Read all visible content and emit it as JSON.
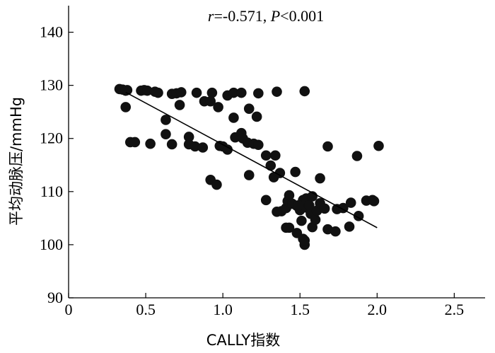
{
  "chart_data": {
    "type": "scatter",
    "title": "",
    "xlabel": "CALLY指数",
    "ylabel": "平均动脉压/mmHg",
    "xlim": [
      0,
      2.7
    ],
    "ylim": [
      90,
      145
    ],
    "xticks": [
      0,
      0.5,
      1.0,
      1.5,
      2.0,
      2.5
    ],
    "xtick_labels": [
      "0",
      "0.5",
      "1.0",
      "1.5",
      "2.0",
      "2.5"
    ],
    "yticks": [
      90,
      100,
      110,
      120,
      130,
      140
    ],
    "ytick_labels": [
      "90",
      "100",
      "110",
      "120",
      "130",
      "140"
    ],
    "grid": false,
    "annotation": {
      "r_label": "r",
      "r_value": "=-0.571, ",
      "p_label": "P",
      "p_value": "<0.001"
    },
    "fit_line": {
      "x": [
        0.37,
        2.0
      ],
      "y": [
        128.7,
        103.2
      ]
    },
    "points": [
      {
        "x": 0.33,
        "y": 129.3
      },
      {
        "x": 0.35,
        "y": 129.2
      },
      {
        "x": 0.37,
        "y": 129.0
      },
      {
        "x": 0.38,
        "y": 129.1
      },
      {
        "x": 0.37,
        "y": 125.9
      },
      {
        "x": 0.4,
        "y": 119.3
      },
      {
        "x": 0.43,
        "y": 119.3
      },
      {
        "x": 0.47,
        "y": 129.0
      },
      {
        "x": 0.49,
        "y": 129.1
      },
      {
        "x": 0.51,
        "y": 129.0
      },
      {
        "x": 0.53,
        "y": 119.0
      },
      {
        "x": 0.56,
        "y": 128.8
      },
      {
        "x": 0.58,
        "y": 128.6
      },
      {
        "x": 0.63,
        "y": 123.5
      },
      {
        "x": 0.63,
        "y": 120.8
      },
      {
        "x": 0.67,
        "y": 118.9
      },
      {
        "x": 0.67,
        "y": 128.4
      },
      {
        "x": 0.7,
        "y": 128.5
      },
      {
        "x": 0.72,
        "y": 126.3
      },
      {
        "x": 0.73,
        "y": 128.7
      },
      {
        "x": 0.78,
        "y": 120.3
      },
      {
        "x": 0.78,
        "y": 118.9
      },
      {
        "x": 0.82,
        "y": 118.5
      },
      {
        "x": 0.83,
        "y": 128.6
      },
      {
        "x": 0.87,
        "y": 118.3
      },
      {
        "x": 0.88,
        "y": 127.0
      },
      {
        "x": 0.92,
        "y": 127.0
      },
      {
        "x": 0.93,
        "y": 128.6
      },
      {
        "x": 0.92,
        "y": 112.2
      },
      {
        "x": 0.96,
        "y": 111.3
      },
      {
        "x": 0.97,
        "y": 125.9
      },
      {
        "x": 0.98,
        "y": 118.6
      },
      {
        "x": 1.0,
        "y": 118.5
      },
      {
        "x": 1.03,
        "y": 117.9
      },
      {
        "x": 1.03,
        "y": 128.1
      },
      {
        "x": 1.07,
        "y": 128.6
      },
      {
        "x": 1.07,
        "y": 123.9
      },
      {
        "x": 1.08,
        "y": 120.2
      },
      {
        "x": 1.12,
        "y": 121.0
      },
      {
        "x": 1.12,
        "y": 128.6
      },
      {
        "x": 1.13,
        "y": 120.0
      },
      {
        "x": 1.16,
        "y": 119.2
      },
      {
        "x": 1.17,
        "y": 125.6
      },
      {
        "x": 1.17,
        "y": 113.1
      },
      {
        "x": 1.2,
        "y": 119.0
      },
      {
        "x": 1.22,
        "y": 124.1
      },
      {
        "x": 1.23,
        "y": 128.5
      },
      {
        "x": 1.23,
        "y": 118.8
      },
      {
        "x": 1.28,
        "y": 116.8
      },
      {
        "x": 1.28,
        "y": 108.4
      },
      {
        "x": 1.31,
        "y": 114.9
      },
      {
        "x": 1.33,
        "y": 112.7
      },
      {
        "x": 1.34,
        "y": 116.8
      },
      {
        "x": 1.35,
        "y": 128.8
      },
      {
        "x": 1.37,
        "y": 113.5
      },
      {
        "x": 1.38,
        "y": 106.3
      },
      {
        "x": 1.41,
        "y": 106.9
      },
      {
        "x": 1.42,
        "y": 108.2
      },
      {
        "x": 1.43,
        "y": 109.3
      },
      {
        "x": 1.43,
        "y": 103.2
      },
      {
        "x": 1.47,
        "y": 113.7
      },
      {
        "x": 1.48,
        "y": 107.3
      },
      {
        "x": 1.48,
        "y": 102.2
      },
      {
        "x": 1.5,
        "y": 106.5
      },
      {
        "x": 1.51,
        "y": 104.5
      },
      {
        "x": 1.52,
        "y": 108.4
      },
      {
        "x": 1.52,
        "y": 101.1
      },
      {
        "x": 1.53,
        "y": 100.0
      },
      {
        "x": 1.53,
        "y": 128.9
      },
      {
        "x": 1.54,
        "y": 108.7
      },
      {
        "x": 1.55,
        "y": 106.9
      },
      {
        "x": 1.56,
        "y": 107.4
      },
      {
        "x": 1.57,
        "y": 105.8
      },
      {
        "x": 1.58,
        "y": 103.3
      },
      {
        "x": 1.58,
        "y": 109.1
      },
      {
        "x": 1.6,
        "y": 104.7
      },
      {
        "x": 1.61,
        "y": 106.4
      },
      {
        "x": 1.63,
        "y": 112.5
      },
      {
        "x": 1.63,
        "y": 107.8
      },
      {
        "x": 1.66,
        "y": 106.8
      },
      {
        "x": 1.68,
        "y": 118.5
      },
      {
        "x": 1.68,
        "y": 102.9
      },
      {
        "x": 1.73,
        "y": 102.5
      },
      {
        "x": 1.74,
        "y": 106.7
      },
      {
        "x": 1.78,
        "y": 106.9
      },
      {
        "x": 1.82,
        "y": 103.4
      },
      {
        "x": 1.83,
        "y": 107.9
      },
      {
        "x": 1.87,
        "y": 116.7
      },
      {
        "x": 1.88,
        "y": 105.4
      },
      {
        "x": 1.93,
        "y": 108.3
      },
      {
        "x": 1.97,
        "y": 108.4
      },
      {
        "x": 2.01,
        "y": 118.6
      },
      {
        "x": 1.35,
        "y": 106.2
      },
      {
        "x": 1.45,
        "y": 107.7
      },
      {
        "x": 1.49,
        "y": 107.4
      },
      {
        "x": 1.41,
        "y": 103.2
      },
      {
        "x": 1.98,
        "y": 108.2
      },
      {
        "x": 1.53,
        "y": 100.8
      }
    ]
  }
}
